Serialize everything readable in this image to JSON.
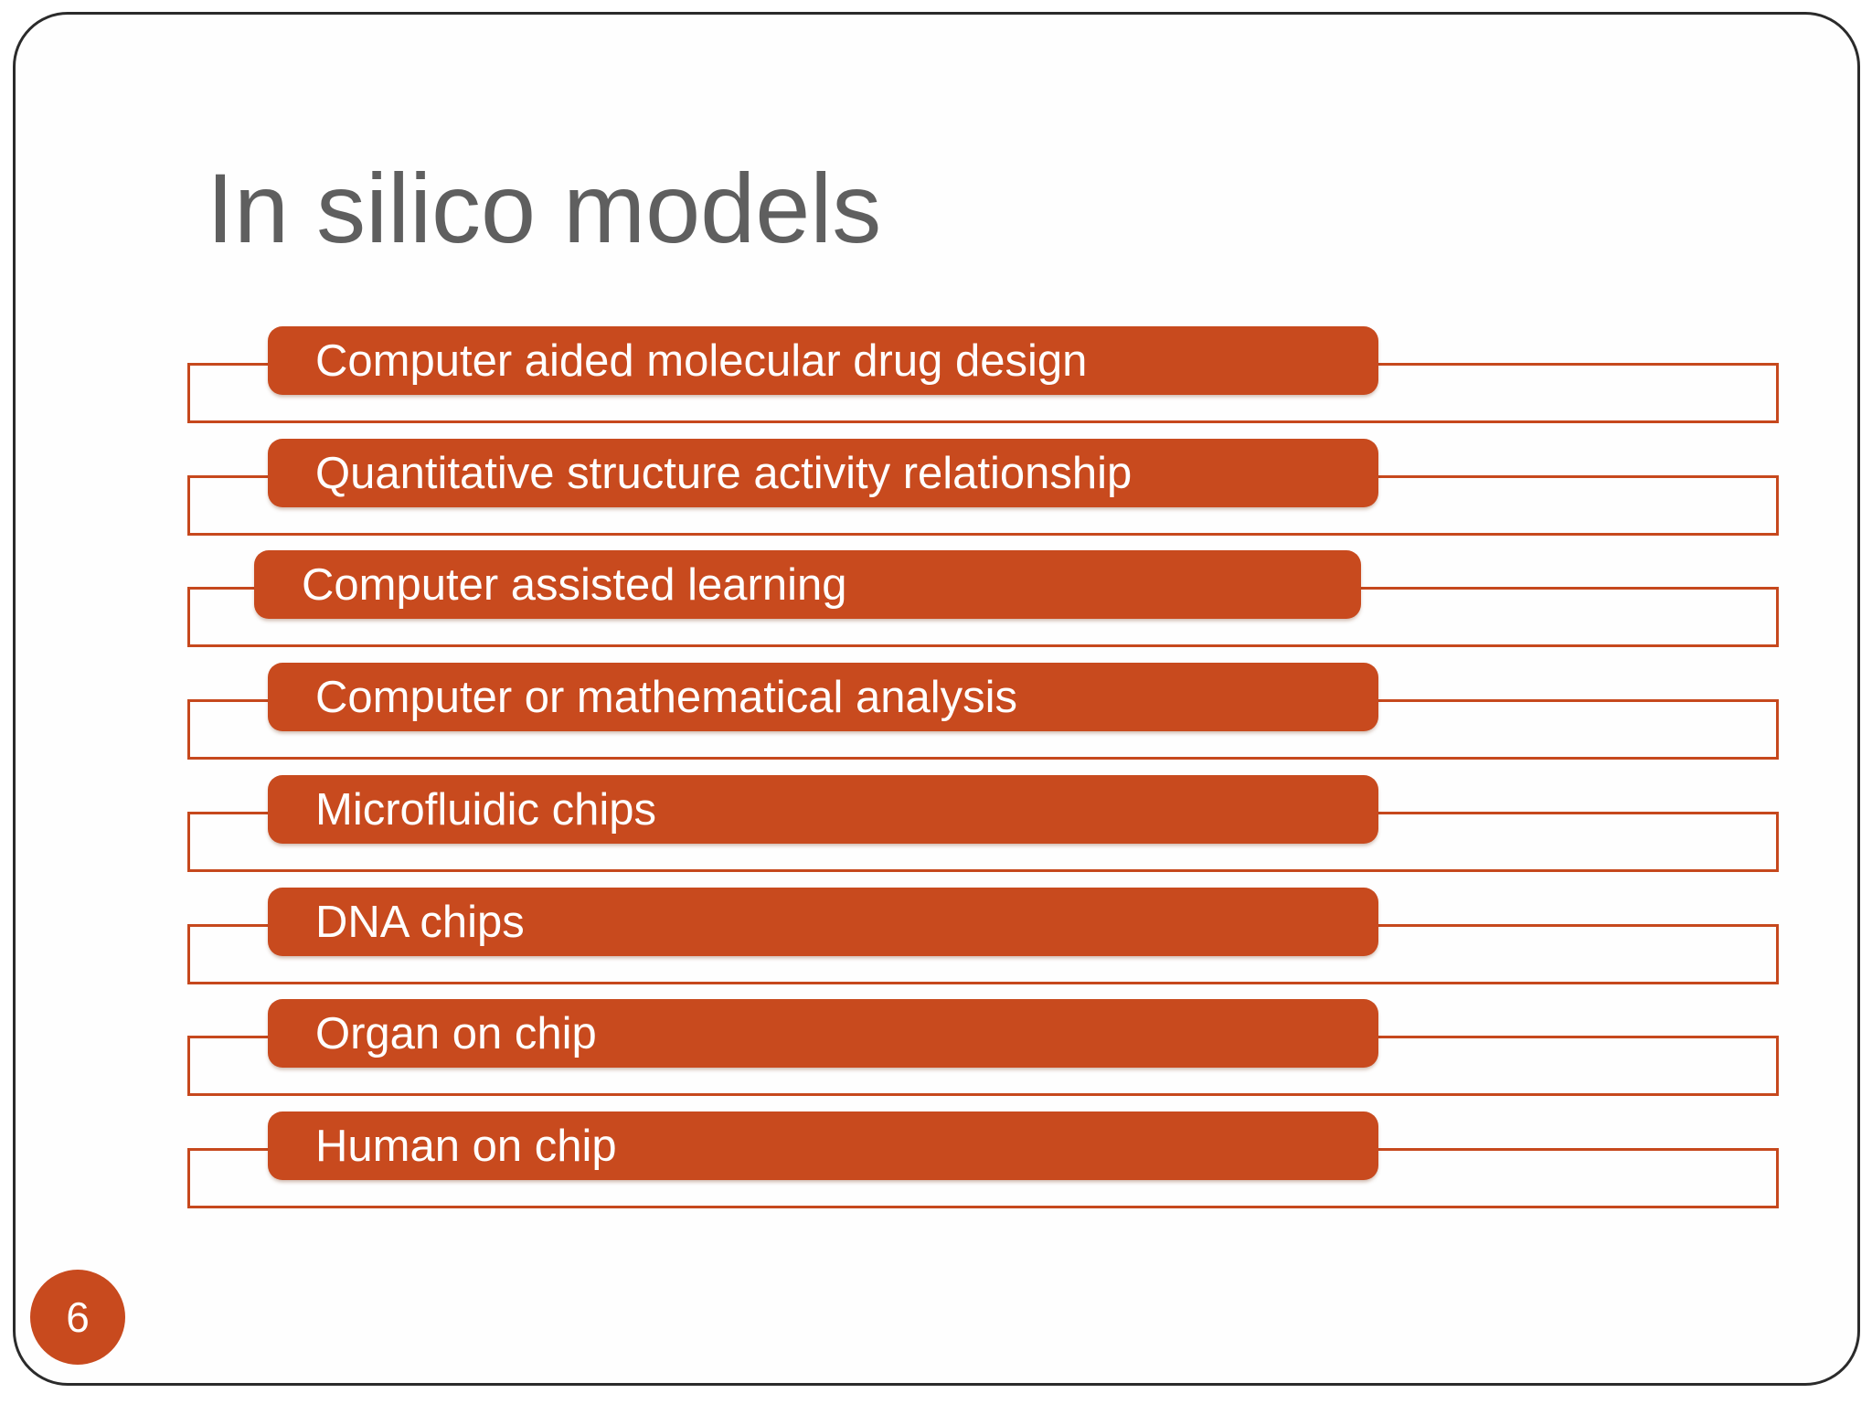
{
  "slide": {
    "title": "In silico models",
    "page_number": "6",
    "items": [
      "Computer aided molecular drug design",
      "Quantitative structure activity relationship",
      "Computer assisted learning",
      "Computer or mathematical analysis",
      "Microfluidic chips",
      "DNA chips",
      "Organ on chip",
      "Human on chip"
    ],
    "colors": {
      "accent_orange": "#C84A1E",
      "outline_orange": "#C6481D",
      "title_gray": "#5F5F5F",
      "frame_border": "#2B2B2B",
      "bar_text": "#FFFFFF"
    }
  }
}
